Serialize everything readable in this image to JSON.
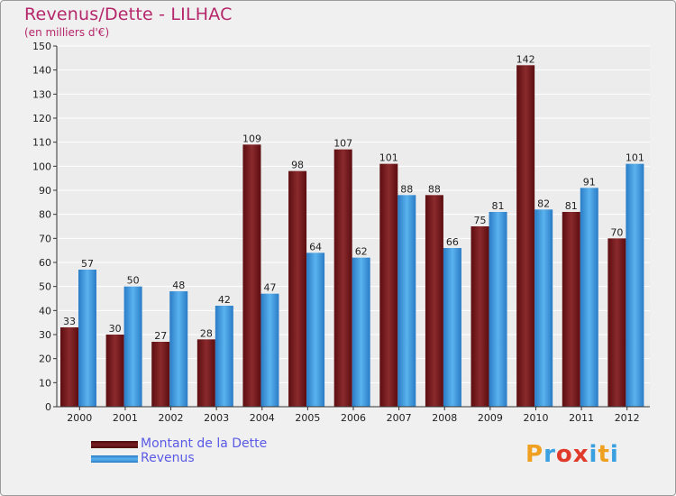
{
  "title": "Revenus/Dette - LILHAC",
  "subtitle": "(en milliers d'€)",
  "logo": {
    "letters": [
      "P",
      "r",
      "o",
      "x",
      "i",
      "t",
      "i"
    ],
    "colors": [
      "#f0a020",
      "#3aa0e0",
      "#e03a2a",
      "#e03a2a",
      "#3aa0e0",
      "#f0a020",
      "#3aa0e0"
    ]
  },
  "colors": {
    "title": "#b5266a",
    "debt": "#7a1f22",
    "revenue": "#4aa3e6",
    "axis_text": "#222222"
  },
  "chart_data": {
    "type": "bar",
    "categories": [
      "2000",
      "2001",
      "2002",
      "2003",
      "2004",
      "2005",
      "2006",
      "2007",
      "2008",
      "2009",
      "2010",
      "2011",
      "2012"
    ],
    "series": [
      {
        "name": "Montant de la Dette",
        "values": [
          33,
          30,
          27,
          28,
          109,
          98,
          107,
          101,
          88,
          75,
          142,
          81,
          70
        ]
      },
      {
        "name": "Revenus",
        "values": [
          57,
          50,
          48,
          42,
          47,
          64,
          62,
          88,
          66,
          81,
          82,
          91,
          101
        ]
      }
    ],
    "ylim": [
      0,
      150
    ],
    "yticks": [
      0,
      10,
      20,
      30,
      40,
      50,
      60,
      70,
      80,
      90,
      100,
      110,
      120,
      130,
      140,
      150
    ],
    "grid": true,
    "legend": "bottom-left"
  }
}
